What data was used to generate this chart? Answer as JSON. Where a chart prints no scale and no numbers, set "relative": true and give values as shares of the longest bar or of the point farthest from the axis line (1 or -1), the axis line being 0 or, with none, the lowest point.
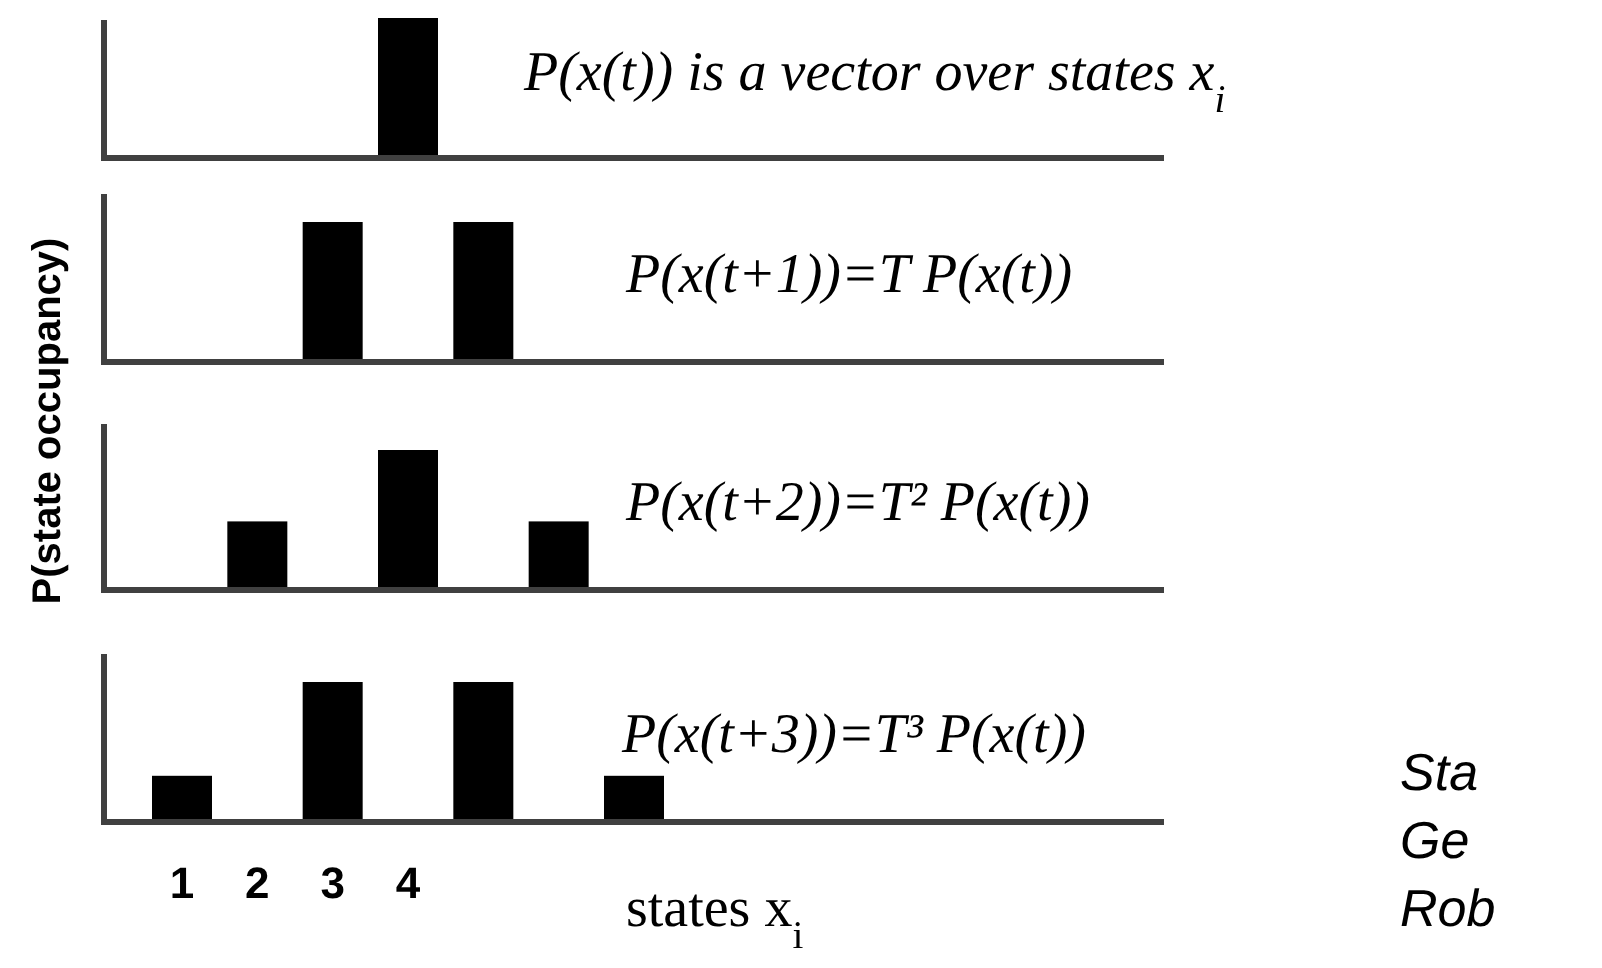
{
  "chart_data": [
    {
      "type": "bar",
      "relative": true,
      "title": "P(x(t)) is a vector over states x$_{i}$",
      "ylabel": "P(state occupancy)",
      "categories": [
        "1",
        "2",
        "3",
        "4",
        null,
        null,
        null
      ],
      "values": [
        0,
        0,
        0,
        1,
        0,
        0,
        0
      ],
      "color": "#000000",
      "tick_labels": false
    },
    {
      "type": "bar",
      "relative": true,
      "title": "P(x(t+1))=T P(x(t))",
      "categories": [
        "1",
        "2",
        "3",
        "4",
        null,
        null,
        null
      ],
      "values": [
        0,
        0,
        1,
        0,
        1,
        0,
        0
      ],
      "color": "#000000",
      "tick_labels": false
    },
    {
      "type": "bar",
      "relative": true,
      "title": "P(x(t+2))=T² P(x(t))",
      "categories": [
        "1",
        "2",
        "3",
        "4",
        null,
        null,
        null
      ],
      "values": [
        0,
        0.49,
        0,
        1,
        0,
        0.49,
        0
      ],
      "color": "#000000",
      "tick_labels": false
    },
    {
      "type": "bar",
      "relative": true,
      "title": "P(x(t+3))=T³ P(x(t))",
      "xlabel": "states x$_{i}$",
      "categories": [
        "1",
        "2",
        "3",
        "4",
        null,
        null,
        null
      ],
      "values": [
        0.33,
        0,
        1,
        0,
        1,
        0,
        0.33
      ],
      "color": "#000000",
      "tick_labels": "x",
      "annotations": [
        "Sta",
        "Ge",
        "Rob"
      ]
    }
  ]
}
